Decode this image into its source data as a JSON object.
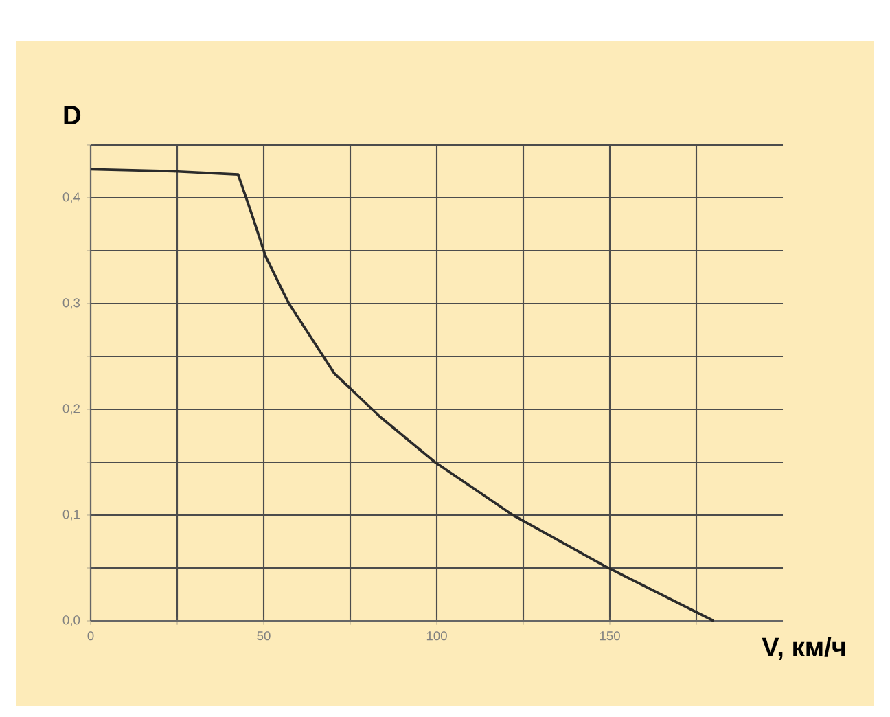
{
  "chart_data": {
    "type": "line",
    "xlabel": "V, км/ч",
    "ylabel": "D",
    "x": [
      0,
      24,
      42.6,
      46.6,
      50.5,
      57.1,
      70.4,
      83.6,
      99.5,
      122,
      148.4,
      180
    ],
    "series": [
      {
        "color": "#2b2b2b",
        "values": [
          0.427,
          0.425,
          0.422,
          0.384,
          0.345,
          0.301,
          0.234,
          0.193,
          0.15,
          0.1,
          0.052,
          0.0
        ]
      }
    ],
    "xlim": [
      0,
      200
    ],
    "ylim": [
      0,
      0.45
    ],
    "xticks": [
      0,
      {
        "value": 25,
        "label": null
      },
      50,
      {
        "value": 75,
        "label": null
      },
      100,
      {
        "value": 125,
        "label": null
      },
      150,
      {
        "value": 175,
        "label": null
      }
    ],
    "yticks": [
      {
        "value": 0,
        "label": "0,0"
      },
      {
        "value": 0.05,
        "label": null
      },
      {
        "value": 0.1,
        "label": "0,1"
      },
      {
        "value": 0.15,
        "label": null
      },
      {
        "value": 0.2,
        "label": "0,2"
      },
      {
        "value": 0.25,
        "label": null
      },
      {
        "value": 0.3,
        "label": "0,3"
      },
      {
        "value": 0.35,
        "label": null
      },
      {
        "value": 0.4,
        "label": "0,4"
      },
      {
        "value": 0.45,
        "label": null
      }
    ],
    "grid": true,
    "marker": "none",
    "line_style": "solid"
  }
}
